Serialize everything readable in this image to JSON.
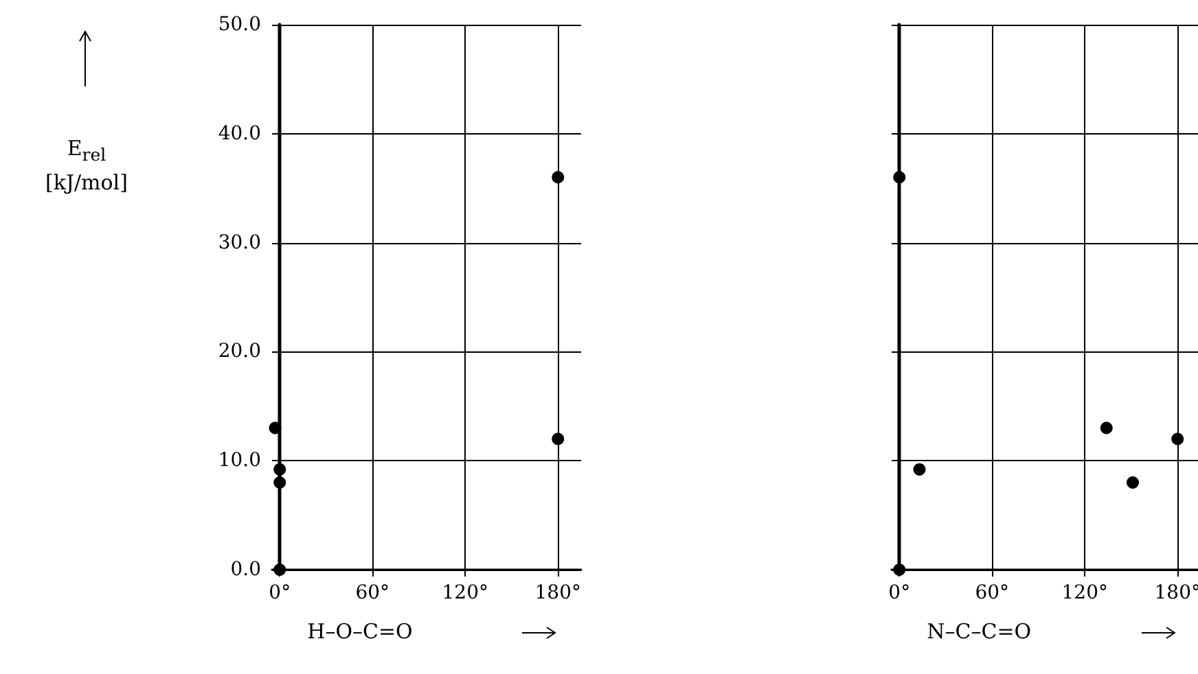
{
  "chart_data": [
    {
      "type": "scatter",
      "xlabel": "H–O–C=O",
      "ylabel": "E$_{rel}$ [kJ/mol]",
      "color": "#000000",
      "marker": "circle",
      "grid": true,
      "x": [
        -3,
        0,
        0,
        0,
        180,
        180
      ],
      "values": [
        13,
        9.2,
        8,
        0,
        36,
        12
      ],
      "xlim": [
        -5,
        195
      ],
      "ylim": [
        0,
        50
      ],
      "xticks": [
        {
          "value": 0,
          "label": "0°"
        },
        {
          "value": 60,
          "label": "60°"
        },
        {
          "value": 120,
          "label": "120°"
        },
        {
          "value": 180,
          "label": "180°"
        }
      ],
      "yticks": [
        {
          "value": 0,
          "label": "0.0"
        },
        {
          "value": 10,
          "label": "10.0"
        },
        {
          "value": 20,
          "label": "20.0"
        },
        {
          "value": 30,
          "label": "30.0"
        },
        {
          "value": 40,
          "label": "40.0"
        },
        {
          "value": 50,
          "label": "50.0"
        }
      ]
    },
    {
      "type": "scatter",
      "xlabel": "N–C–C=O",
      "color": "#000000",
      "marker": "circle",
      "grid": true,
      "tick_labels": "x",
      "x": [
        0,
        0,
        13,
        134,
        151,
        180
      ],
      "values": [
        36,
        0,
        9.2,
        13,
        8,
        12
      ],
      "xlim": [
        -5,
        195
      ],
      "ylim": [
        0,
        50
      ],
      "xticks": [
        {
          "value": 0,
          "label": "0°"
        },
        {
          "value": 60,
          "label": "60°"
        },
        {
          "value": 120,
          "label": "120°"
        },
        {
          "value": 180,
          "label": "180°"
        }
      ],
      "yticks": [
        0,
        10,
        20,
        30,
        40,
        50
      ]
    }
  ]
}
